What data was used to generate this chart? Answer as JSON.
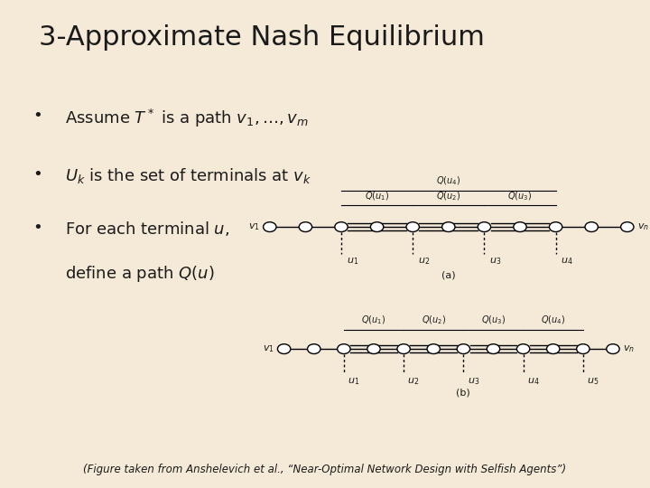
{
  "title": "3-Approximate Nash Equilibrium",
  "title_fontsize": 22,
  "background_color": "#f5ead8",
  "text_color": "#1a1a1a",
  "bullet1": "Assume $T^*$ is a path $v_1, \\ldots, v_m$",
  "bullet2": "$U_k$ is the set of terminals at $v_k$",
  "bullet3a": "For each terminal $u$,",
  "bullet3b": "define a path $Q(u)$",
  "bullet_fontsize": 13,
  "footnote": "(Figure taken from Anshelevich et al., “Near-Optimal Network Design with Selfish Agents”)",
  "footnote_fontsize": 8.5
}
